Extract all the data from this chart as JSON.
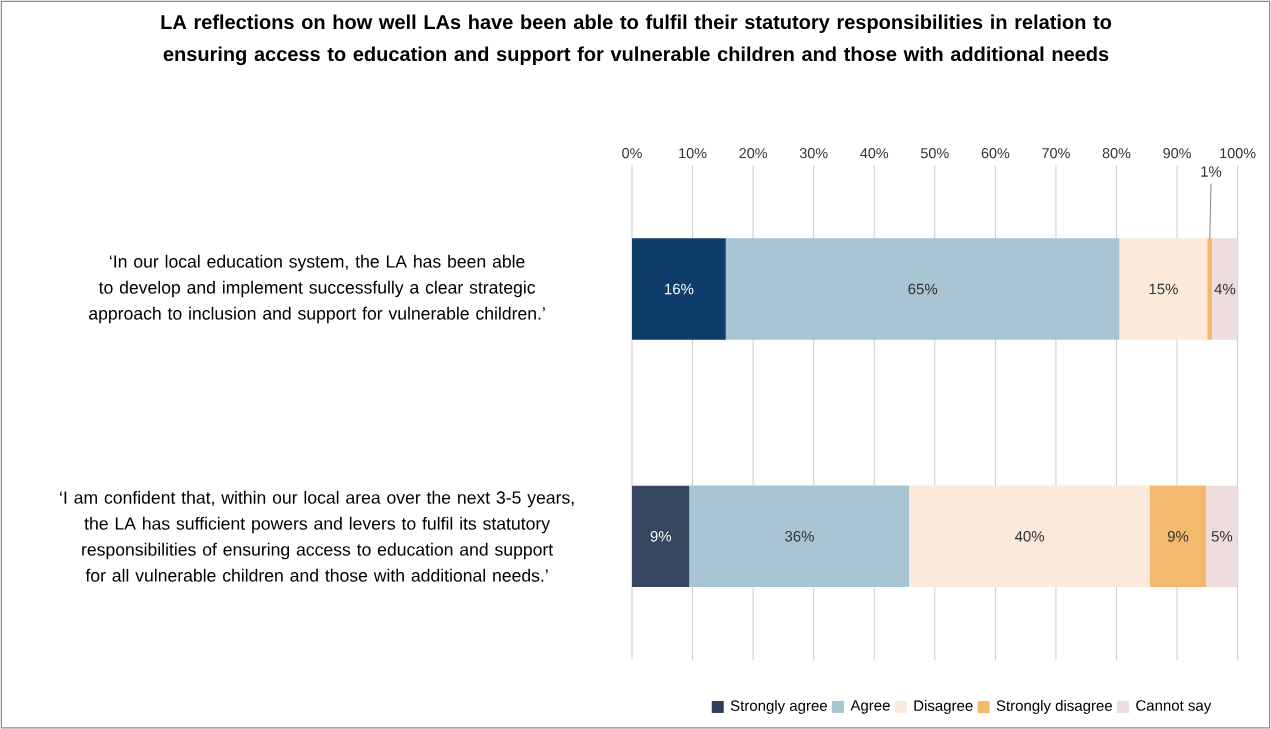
{
  "chart_data": {
    "type": "bar",
    "orientation": "horizontal",
    "stacked": true,
    "title": "LA reflections on how well LAs have been able to fulfil their statutory responsibilities in relation to ensuring access to education and support for vulnerable children and those with additional needs",
    "categories": [
      "‘In our local education system, the LA has been able to develop and implement successfully a clear strategic approach to inclusion and support for vulnerable children.’",
      "‘I am confident that, within our local area over the next 3-5 years, the LA has sufficient powers and levers to fulfil its statutory responsibilities of ensuring access to education and support for all vulnerable children and those with additional needs.’"
    ],
    "series": [
      {
        "name": "Strongly agree",
        "color": "#2f3f5c",
        "colors": [
          "#0e3d6b",
          "#35465f"
        ],
        "values": [
          15.5,
          9.5
        ],
        "value_labels": [
          "16%",
          "9%"
        ]
      },
      {
        "name": "Agree",
        "color": "#a9c5d4",
        "values": [
          65,
          36.3
        ],
        "value_labels": [
          "65%",
          "36%"
        ]
      },
      {
        "name": "Disagree",
        "color": "#fbeadb",
        "values": [
          14.5,
          39.7
        ],
        "value_labels": [
          "15%",
          "40%"
        ]
      },
      {
        "name": "Strongly disagree",
        "color": "#f4b96e",
        "values": [
          0.8,
          9.3
        ],
        "value_labels": [
          "1%",
          "9%"
        ]
      },
      {
        "name": "Cannot say",
        "color": "#efdcdc",
        "values": [
          4.2,
          5.2
        ],
        "value_labels": [
          "4%",
          "5%"
        ]
      }
    ],
    "xlim": [
      0,
      100
    ],
    "xticks": [
      {
        "value": 0,
        "label": "0%"
      },
      {
        "value": 10,
        "label": "10%"
      },
      {
        "value": 20,
        "label": "20%"
      },
      {
        "value": 30,
        "label": "30%"
      },
      {
        "value": 40,
        "label": "40%"
      },
      {
        "value": 50,
        "label": "50%"
      },
      {
        "value": 60,
        "label": "60%"
      },
      {
        "value": 70,
        "label": "70%"
      },
      {
        "value": 80,
        "label": "80%"
      },
      {
        "value": 90,
        "label": "90%"
      },
      {
        "value": 100,
        "label": "100%"
      }
    ],
    "grid": "x",
    "legend": "bottom"
  }
}
